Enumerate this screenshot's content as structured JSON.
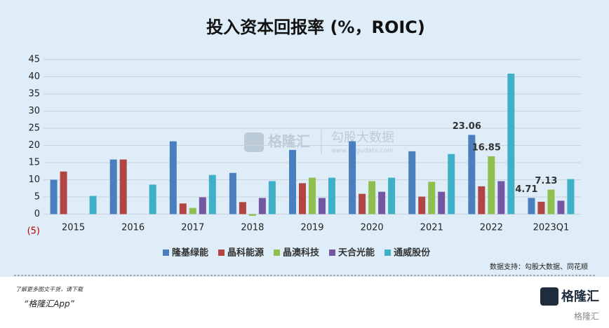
{
  "chart_data": {
    "type": "bar",
    "title": "投入资本回报率 (%，ROIC)",
    "categories": [
      "2015",
      "2016",
      "2017",
      "2018",
      "2019",
      "2020",
      "2021",
      "2022",
      "2023Q1"
    ],
    "series": [
      {
        "name": "隆基绿能",
        "color": "#4a7ebf",
        "values": [
          10.0,
          15.9,
          21.2,
          12.0,
          18.7,
          21.2,
          18.3,
          23.06,
          4.71
        ],
        "value_labels": [
          null,
          null,
          null,
          null,
          null,
          null,
          null,
          "23.06",
          "4.71"
        ]
      },
      {
        "name": "晶科能源",
        "color": "#b14543",
        "values": [
          12.4,
          15.9,
          3.1,
          3.5,
          9.0,
          5.9,
          5.1,
          8.1,
          3.6
        ]
      },
      {
        "name": "晶澳科技",
        "color": "#8fbf4e",
        "values": [
          null,
          null,
          1.8,
          -0.5,
          10.6,
          9.6,
          9.4,
          16.85,
          7.13
        ],
        "value_labels": [
          null,
          null,
          null,
          null,
          null,
          null,
          null,
          "16.85",
          "7.13"
        ]
      },
      {
        "name": "天合光能",
        "color": "#7457a3",
        "values": [
          null,
          null,
          4.9,
          4.7,
          4.7,
          6.5,
          6.5,
          9.6,
          3.9
        ]
      },
      {
        "name": "通威股份",
        "color": "#3fb0c8",
        "values": [
          5.3,
          8.6,
          11.4,
          9.6,
          10.6,
          10.6,
          17.5,
          40.9,
          10.2
        ]
      }
    ],
    "ylim": [
      -5,
      45
    ],
    "yticks": [
      {
        "value": -5,
        "label": "(5)"
      },
      0,
      5,
      10,
      15,
      20,
      25,
      30,
      35,
      40,
      45
    ],
    "negative_tick_color": "#c00000",
    "grid": true,
    "legend": "bottom",
    "source": "数据支持：勾股大数据、同花顺"
  },
  "watermark": {
    "brand": "格隆汇",
    "data": "勾股大数据",
    "url": "www.gogudata.com"
  },
  "footer": {
    "prompt": "了解更多图文干货，请下载",
    "app": "“格隆汇App”",
    "logo": "格隆汇",
    "logo_sub": "格隆汇"
  }
}
